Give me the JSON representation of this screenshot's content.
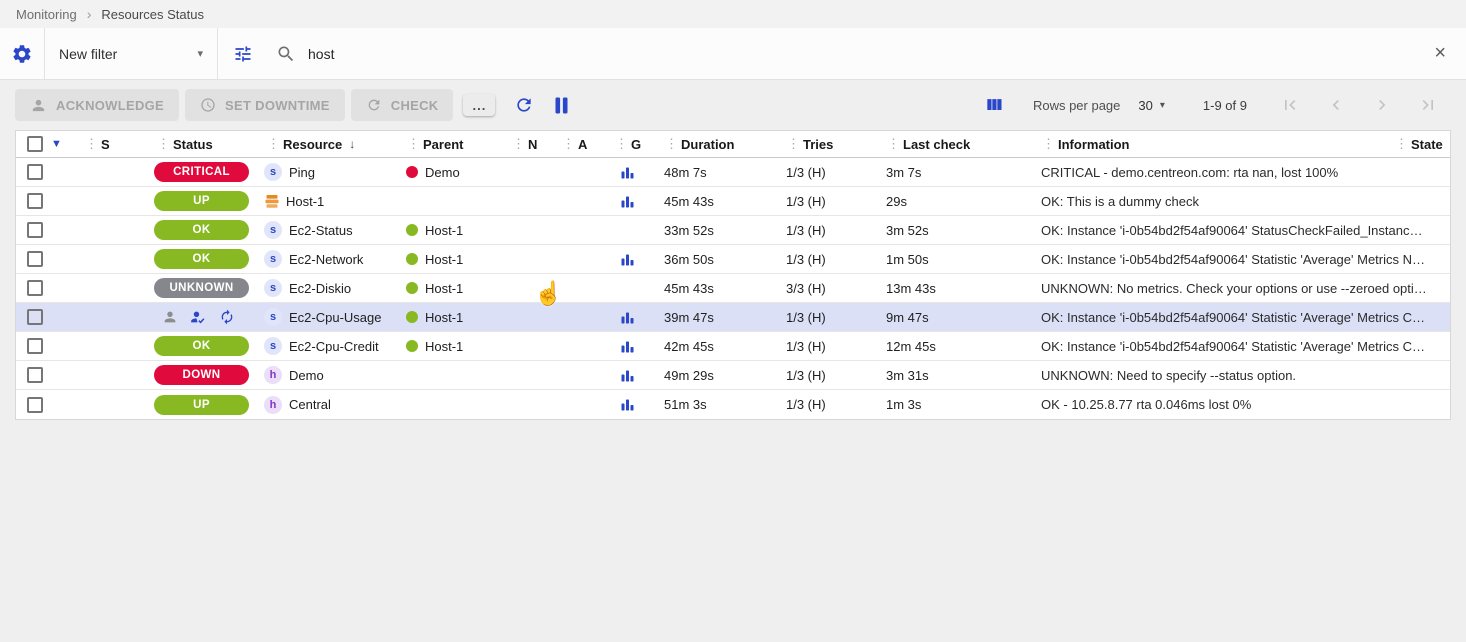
{
  "breadcrumb": {
    "items": [
      "Monitoring",
      "Resources Status"
    ]
  },
  "filter_bar": {
    "preset_label": "New filter",
    "search_value": "host"
  },
  "toolbar": {
    "acknowledge_label": "ACKNOWLEDGE",
    "set_downtime_label": "SET DOWNTIME",
    "check_label": "CHECK",
    "more_label": "...",
    "rows_per_page_label": "Rows per page",
    "rows_per_page_value": "30",
    "range_label": "1-9 of 9"
  },
  "colors": {
    "accent": "#2a46c9",
    "critical": "#e00b3c",
    "down": "#e00b3c",
    "ok": "#88b922",
    "up": "#88b922",
    "unknown": "#85878c",
    "red": "#e00b3c",
    "green": "#88b922",
    "stack_orange": "#e8881d"
  },
  "table": {
    "headers": [
      "S",
      "Status",
      "Resource",
      "Parent",
      "N",
      "A",
      "G",
      "Duration",
      "Tries",
      "Last check",
      "Information",
      "State"
    ],
    "sort_column": "Resource",
    "sort_direction": "desc",
    "rows": [
      {
        "status": "CRITICAL",
        "status_color": "critical",
        "resource_icon": "s",
        "resource": "Ping",
        "parent": "Demo",
        "parent_color": "red",
        "graph": true,
        "duration": "48m 7s",
        "tries": "1/3 (H)",
        "last_check": "3m 7s",
        "information": "CRITICAL - demo.centreon.com: rta nan, lost 100%"
      },
      {
        "status": "UP",
        "status_color": "up",
        "resource_icon": "stack",
        "resource": "Host-1",
        "parent": "",
        "graph": true,
        "duration": "45m 43s",
        "tries": "1/3 (H)",
        "last_check": "29s",
        "information": "OK: This is a dummy check"
      },
      {
        "status": "OK",
        "status_color": "ok",
        "resource_icon": "s",
        "resource": "Ec2-Status",
        "parent": "Host-1",
        "parent_color": "green",
        "graph": false,
        "duration": "33m 52s",
        "tries": "1/3 (H)",
        "last_check": "3m 52s",
        "information": "OK: Instance 'i-0b54bd2f54af90064' StatusCheckFailed_Instanc…"
      },
      {
        "status": "OK",
        "status_color": "ok",
        "resource_icon": "s",
        "resource": "Ec2-Network",
        "parent": "Host-1",
        "parent_color": "green",
        "graph": true,
        "duration": "36m 50s",
        "tries": "1/3 (H)",
        "last_check": "1m 50s",
        "information": "OK: Instance 'i-0b54bd2f54af90064' Statistic 'Average' Metrics N…"
      },
      {
        "status": "UNKNOWN",
        "status_color": "unknown",
        "resource_icon": "s",
        "resource": "Ec2-Diskio",
        "parent": "Host-1",
        "parent_color": "green",
        "graph": false,
        "duration": "45m 43s",
        "tries": "3/3 (H)",
        "last_check": "13m 43s",
        "information": "UNKNOWN: No metrics. Check your options or use --zeroed opti…"
      },
      {
        "state_icons": [
          "person-icon",
          "acknowledged-icon",
          "sync-icon"
        ],
        "highlighted": true,
        "resource_icon": "s",
        "resource": "Ec2-Cpu-Usage",
        "parent": "Host-1",
        "parent_color": "green",
        "graph": true,
        "duration": "39m 47s",
        "tries": "1/3 (H)",
        "last_check": "9m 47s",
        "information": "OK: Instance 'i-0b54bd2f54af90064' Statistic 'Average' Metrics C…"
      },
      {
        "status": "OK",
        "status_color": "ok",
        "resource_icon": "s",
        "resource": "Ec2-Cpu-Credit",
        "parent": "Host-1",
        "parent_color": "green",
        "graph": true,
        "duration": "42m 45s",
        "tries": "1/3 (H)",
        "last_check": "12m 45s",
        "information": "OK: Instance 'i-0b54bd2f54af90064' Statistic 'Average' Metrics C…"
      },
      {
        "status": "DOWN",
        "status_color": "down",
        "resource_icon": "h",
        "resource": "Demo",
        "parent": "",
        "graph": true,
        "duration": "49m 29s",
        "tries": "1/3 (H)",
        "last_check": "3m 31s",
        "information": "UNKNOWN: Need to specify --status option."
      },
      {
        "status": "UP",
        "status_color": "up",
        "resource_icon": "h",
        "resource": "Central",
        "parent": "",
        "graph": true,
        "duration": "51m 3s",
        "tries": "1/3 (H)",
        "last_check": "1m 3s",
        "information": "OK - 10.25.8.77 rta 0.046ms lost 0%"
      }
    ]
  }
}
